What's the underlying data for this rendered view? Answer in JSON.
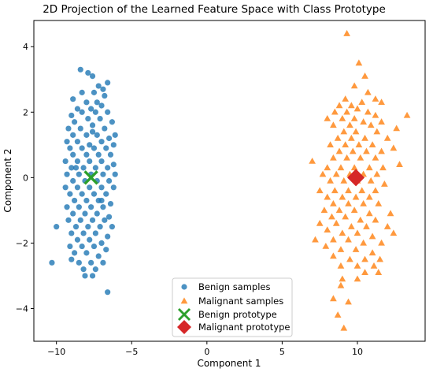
{
  "chart_data": {
    "type": "scatter",
    "title": "2D Projection of the Learned Feature Space with Class Prototype",
    "xlabel": "Component 1",
    "ylabel": "Component 2",
    "xlim": [
      -11.5,
      14.5
    ],
    "ylim": [
      -5.0,
      4.8
    ],
    "xticks": [
      -10,
      -5,
      0,
      5,
      10
    ],
    "yticks": [
      -4,
      -2,
      0,
      2,
      4
    ],
    "grid": false,
    "legend_position": "bottom-center",
    "series": [
      {
        "name": "Benign samples",
        "marker": "circle",
        "color": "#1f77b4",
        "points": [
          [
            -8.4,
            3.3
          ],
          [
            -7.9,
            3.2
          ],
          [
            -7.6,
            3.1
          ],
          [
            -6.6,
            2.9
          ],
          [
            -7.2,
            2.8
          ],
          [
            -8.3,
            2.6
          ],
          [
            -7.5,
            2.6
          ],
          [
            -6.9,
            2.7
          ],
          [
            -6.8,
            2.5
          ],
          [
            -8.9,
            2.4
          ],
          [
            -8.0,
            2.3
          ],
          [
            -7.3,
            2.3
          ],
          [
            -7.0,
            2.2
          ],
          [
            -8.6,
            2.1
          ],
          [
            -7.7,
            2.1
          ],
          [
            -9.0,
            1.9
          ],
          [
            -8.3,
            2.0
          ],
          [
            -7.4,
            2.0
          ],
          [
            -6.6,
            2.0
          ],
          [
            -8.8,
            1.7
          ],
          [
            -7.9,
            1.8
          ],
          [
            -7.1,
            1.8
          ],
          [
            -6.3,
            1.7
          ],
          [
            -9.2,
            1.5
          ],
          [
            -8.4,
            1.5
          ],
          [
            -7.6,
            1.6
          ],
          [
            -6.8,
            1.5
          ],
          [
            -6.1,
            1.3
          ],
          [
            -8.9,
            1.3
          ],
          [
            -8.0,
            1.3
          ],
          [
            -7.3,
            1.3
          ],
          [
            -6.5,
            1.2
          ],
          [
            -9.3,
            1.1
          ],
          [
            -8.6,
            1.1
          ],
          [
            -7.8,
            1.0
          ],
          [
            -7.0,
            1.1
          ],
          [
            -6.2,
            1.0
          ],
          [
            -9.1,
            0.9
          ],
          [
            -8.3,
            0.9
          ],
          [
            -7.5,
            0.9
          ],
          [
            -6.7,
            0.9
          ],
          [
            -8.9,
            0.7
          ],
          [
            -8.0,
            0.7
          ],
          [
            -7.2,
            0.7
          ],
          [
            -6.4,
            0.7
          ],
          [
            -9.4,
            0.5
          ],
          [
            -8.6,
            0.5
          ],
          [
            -7.8,
            0.5
          ],
          [
            -7.0,
            0.5
          ],
          [
            -6.2,
            0.4
          ],
          [
            -9.0,
            0.3
          ],
          [
            -8.2,
            0.3
          ],
          [
            -7.4,
            0.3
          ],
          [
            -6.6,
            0.3
          ],
          [
            -9.3,
            0.1
          ],
          [
            -8.5,
            0.1
          ],
          [
            -7.7,
            0.1
          ],
          [
            -6.9,
            0.1
          ],
          [
            -6.1,
            0.1
          ],
          [
            -8.9,
            -0.1
          ],
          [
            -8.1,
            -0.1
          ],
          [
            -7.3,
            -0.1
          ],
          [
            -6.5,
            -0.1
          ],
          [
            -9.4,
            -0.3
          ],
          [
            -8.6,
            -0.3
          ],
          [
            -7.8,
            -0.3
          ],
          [
            -7.0,
            -0.3
          ],
          [
            -6.2,
            -0.3
          ],
          [
            -9.1,
            -0.5
          ],
          [
            -8.3,
            -0.5
          ],
          [
            -7.5,
            -0.5
          ],
          [
            -6.7,
            -0.5
          ],
          [
            -8.8,
            -0.7
          ],
          [
            -8.0,
            -0.7
          ],
          [
            -7.2,
            -0.7
          ],
          [
            -6.4,
            -0.8
          ],
          [
            -9.3,
            -0.9
          ],
          [
            -8.5,
            -0.9
          ],
          [
            -7.7,
            -0.9
          ],
          [
            -6.9,
            -0.9
          ],
          [
            -8.9,
            -1.1
          ],
          [
            -8.1,
            -1.1
          ],
          [
            -7.3,
            -1.1
          ],
          [
            -6.5,
            -1.2
          ],
          [
            -9.2,
            -1.3
          ],
          [
            -8.4,
            -1.3
          ],
          [
            -7.6,
            -1.3
          ],
          [
            -6.8,
            -1.3
          ],
          [
            -10.0,
            -1.5
          ],
          [
            -8.7,
            -1.5
          ],
          [
            -7.9,
            -1.5
          ],
          [
            -7.1,
            -1.5
          ],
          [
            -9.0,
            -1.7
          ],
          [
            -8.2,
            -1.7
          ],
          [
            -7.4,
            -1.7
          ],
          [
            -6.6,
            -1.8
          ],
          [
            -8.6,
            -1.9
          ],
          [
            -7.8,
            -1.9
          ],
          [
            -7.0,
            -2.0
          ],
          [
            -9.1,
            -2.1
          ],
          [
            -8.3,
            -2.1
          ],
          [
            -7.5,
            -2.1
          ],
          [
            -6.7,
            -2.2
          ],
          [
            -8.8,
            -2.3
          ],
          [
            -8.0,
            -2.3
          ],
          [
            -7.2,
            -2.4
          ],
          [
            -8.5,
            -2.6
          ],
          [
            -7.7,
            -2.6
          ],
          [
            -6.9,
            -2.6
          ],
          [
            -10.3,
            -2.6
          ],
          [
            -9.0,
            -2.5
          ],
          [
            -8.2,
            -2.8
          ],
          [
            -7.4,
            -2.8
          ],
          [
            -8.1,
            -3.0
          ],
          [
            -7.6,
            -3.0
          ],
          [
            -6.6,
            -3.5
          ],
          [
            -7.0,
            -0.7
          ],
          [
            -7.6,
            1.4
          ],
          [
            -8.7,
            0.3
          ],
          [
            -6.3,
            -1.5
          ]
        ]
      },
      {
        "name": "Malignant samples",
        "marker": "triangle",
        "color": "#ff7f0e",
        "points": [
          [
            9.3,
            4.4
          ],
          [
            10.1,
            3.5
          ],
          [
            10.5,
            3.1
          ],
          [
            9.8,
            2.8
          ],
          [
            10.7,
            2.6
          ],
          [
            11.2,
            2.4
          ],
          [
            9.2,
            2.4
          ],
          [
            10.3,
            2.3
          ],
          [
            8.8,
            2.2
          ],
          [
            9.6,
            2.2
          ],
          [
            11.6,
            2.3
          ],
          [
            10.0,
            2.1
          ],
          [
            8.5,
            2.0
          ],
          [
            9.3,
            2.0
          ],
          [
            10.7,
            2.0
          ],
          [
            11.2,
            1.9
          ],
          [
            13.3,
            1.9
          ],
          [
            8.0,
            1.8
          ],
          [
            9.0,
            1.8
          ],
          [
            9.8,
            1.8
          ],
          [
            10.4,
            1.7
          ],
          [
            11.6,
            1.7
          ],
          [
            8.4,
            1.6
          ],
          [
            9.5,
            1.6
          ],
          [
            10.9,
            1.6
          ],
          [
            12.6,
            1.5
          ],
          [
            9.1,
            1.4
          ],
          [
            9.9,
            1.4
          ],
          [
            11.3,
            1.4
          ],
          [
            8.7,
            1.2
          ],
          [
            9.6,
            1.2
          ],
          [
            10.5,
            1.2
          ],
          [
            12.0,
            1.2
          ],
          [
            8.2,
            1.0
          ],
          [
            9.2,
            1.0
          ],
          [
            10.1,
            1.0
          ],
          [
            11.0,
            1.0
          ],
          [
            12.4,
            0.9
          ],
          [
            8.8,
            0.8
          ],
          [
            9.7,
            0.8
          ],
          [
            10.6,
            0.8
          ],
          [
            11.6,
            0.8
          ],
          [
            8.4,
            0.6
          ],
          [
            9.3,
            0.6
          ],
          [
            10.2,
            0.6
          ],
          [
            11.2,
            0.6
          ],
          [
            12.8,
            0.4
          ],
          [
            7.0,
            0.5
          ],
          [
            8.0,
            0.3
          ],
          [
            8.9,
            0.3
          ],
          [
            9.8,
            0.3
          ],
          [
            10.8,
            0.3
          ],
          [
            11.7,
            0.3
          ],
          [
            7.7,
            0.1
          ],
          [
            8.6,
            0.1
          ],
          [
            9.5,
            0.1
          ],
          [
            10.4,
            0.1
          ],
          [
            11.3,
            0.1
          ],
          [
            8.2,
            -0.1
          ],
          [
            9.1,
            -0.1
          ],
          [
            10.0,
            -0.1
          ],
          [
            10.9,
            -0.1
          ],
          [
            11.8,
            -0.2
          ],
          [
            7.5,
            -0.4
          ],
          [
            8.5,
            -0.4
          ],
          [
            9.4,
            -0.4
          ],
          [
            10.3,
            -0.4
          ],
          [
            11.2,
            -0.4
          ],
          [
            8.0,
            -0.6
          ],
          [
            9.0,
            -0.6
          ],
          [
            9.9,
            -0.6
          ],
          [
            10.8,
            -0.6
          ],
          [
            8.4,
            -0.8
          ],
          [
            9.4,
            -0.8
          ],
          [
            10.4,
            -0.8
          ],
          [
            11.4,
            -0.8
          ],
          [
            7.8,
            -1.0
          ],
          [
            8.8,
            -1.0
          ],
          [
            9.8,
            -1.0
          ],
          [
            10.8,
            -1.1
          ],
          [
            12.2,
            -1.1
          ],
          [
            8.3,
            -1.2
          ],
          [
            9.2,
            -1.2
          ],
          [
            10.2,
            -1.3
          ],
          [
            11.2,
            -1.3
          ],
          [
            7.5,
            -1.4
          ],
          [
            8.6,
            -1.4
          ],
          [
            9.6,
            -1.5
          ],
          [
            10.6,
            -1.5
          ],
          [
            12.0,
            -1.5
          ],
          [
            8.0,
            -1.6
          ],
          [
            9.0,
            -1.7
          ],
          [
            10.0,
            -1.7
          ],
          [
            11.0,
            -1.8
          ],
          [
            7.2,
            -1.9
          ],
          [
            8.4,
            -1.9
          ],
          [
            9.4,
            -1.9
          ],
          [
            10.4,
            -2.0
          ],
          [
            11.6,
            -2.0
          ],
          [
            12.4,
            -1.7
          ],
          [
            7.9,
            -2.1
          ],
          [
            8.9,
            -2.2
          ],
          [
            9.9,
            -2.2
          ],
          [
            11.0,
            -2.3
          ],
          [
            8.4,
            -2.4
          ],
          [
            9.5,
            -2.5
          ],
          [
            10.5,
            -2.5
          ],
          [
            11.5,
            -2.5
          ],
          [
            8.9,
            -2.7
          ],
          [
            10.0,
            -2.7
          ],
          [
            11.1,
            -2.7
          ],
          [
            10.5,
            -2.9
          ],
          [
            11.4,
            -2.9
          ],
          [
            9.0,
            -3.1
          ],
          [
            10.0,
            -3.1
          ],
          [
            8.9,
            -3.3
          ],
          [
            8.4,
            -3.7
          ],
          [
            9.4,
            -3.8
          ],
          [
            8.7,
            -4.2
          ],
          [
            9.1,
            -4.6
          ]
        ]
      },
      {
        "name": "Benign prototype",
        "marker": "x",
        "color": "#2ca02c",
        "points": [
          [
            -7.7,
            0.0
          ]
        ]
      },
      {
        "name": "Malignant prototype",
        "marker": "diamond",
        "color": "#d62728",
        "points": [
          [
            9.9,
            0.0
          ]
        ]
      }
    ]
  }
}
